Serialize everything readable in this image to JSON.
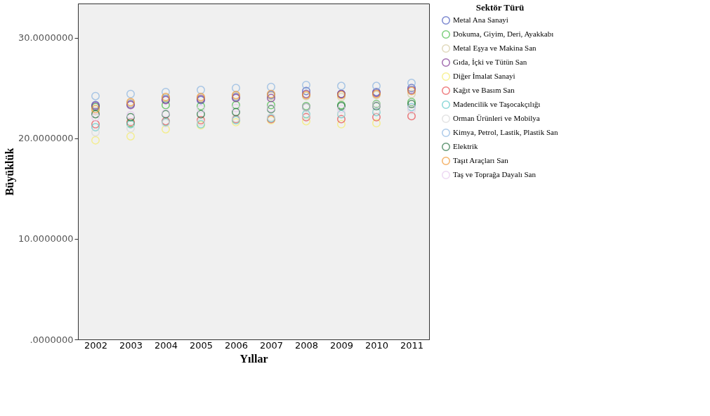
{
  "chart_data": {
    "type": "scatter",
    "xlabel": "Yıllar",
    "ylabel": "Büyüklük",
    "legend_title": "Sektör Türü",
    "legend": "top right",
    "grid": false,
    "marker": "circle",
    "categories": [
      "2002",
      "2003",
      "2004",
      "2005",
      "2006",
      "2007",
      "2008",
      "2009",
      "2010",
      "2011"
    ],
    "ylim": [
      0,
      33.4
    ],
    "yticks": [
      {
        "value": 0,
        "label": ".0000000"
      },
      {
        "value": 10,
        "label": "10.0000000"
      },
      {
        "value": 20,
        "label": "20.0000000"
      },
      {
        "value": 30,
        "label": "30.0000000"
      }
    ],
    "series": [
      {
        "name": "Metal Ana Sanayi",
        "color": "#4455bb",
        "values": [
          23.3,
          23.4,
          23.9,
          23.8,
          24.1,
          24.3,
          24.7,
          24.4,
          24.6,
          25.0
        ]
      },
      {
        "name": "Dokuma, Giyim, Deri, Ayakkabı",
        "color": "#44bb44",
        "values": [
          23.1,
          21.5,
          23.3,
          23.2,
          23.3,
          23.3,
          23.2,
          23.3,
          23.4,
          23.6
        ]
      },
      {
        "name": "Metal Eşya ve Makina San",
        "color": "#d4c9a0",
        "values": [
          22.7,
          23.5,
          24.0,
          24.0,
          24.2,
          24.2,
          24.2,
          24.1,
          24.3,
          24.4
        ]
      },
      {
        "name": "Gıda, İçki ve Tütün San",
        "color": "#7b2f8f",
        "values": [
          23.2,
          23.3,
          23.8,
          23.9,
          24.0,
          24.0,
          24.4,
          24.4,
          24.5,
          24.8
        ]
      },
      {
        "name": "Diğer İmalat Sanayi",
        "color": "#f5ec6a",
        "values": [
          19.8,
          20.2,
          20.9,
          21.3,
          21.6,
          21.8,
          21.7,
          21.4,
          21.5,
          null
        ]
      },
      {
        "name": "Kağıt ve Basım San",
        "color": "#e8474a",
        "values": [
          21.4,
          21.6,
          21.7,
          21.8,
          21.9,
          21.9,
          22.1,
          21.9,
          22.1,
          22.2
        ]
      },
      {
        "name": "Madencilik ve Taşocakçılığı",
        "color": "#5cc8c8",
        "values": [
          21.1,
          21.4,
          21.6,
          21.4,
          21.8,
          22.0,
          22.4,
          22.4,
          22.6,
          23.1
        ]
      },
      {
        "name": "Orman Ürünleri ve Mobilya",
        "color": "#d8d8d8",
        "values": [
          20.6,
          21.0,
          21.5,
          21.6,
          22.0,
          22.1,
          22.2,
          22.5,
          22.8,
          22.8
        ]
      },
      {
        "name": "Kimya, Petrol, Lastik, Plastik San",
        "color": "#8ab4e0",
        "values": [
          24.2,
          24.4,
          24.6,
          24.8,
          25.0,
          25.1,
          25.3,
          25.2,
          25.2,
          25.5
        ]
      },
      {
        "name": "Elektrik",
        "color": "#1f6b3a",
        "values": [
          22.4,
          22.1,
          22.4,
          22.4,
          22.6,
          22.9,
          23.1,
          23.2,
          23.2,
          23.4
        ]
      },
      {
        "name": "Taşıt Araçları San",
        "color": "#f0922a",
        "values": [
          22.9,
          23.6,
          24.1,
          24.1,
          24.3,
          24.4,
          24.3,
          24.3,
          24.4,
          24.7
        ]
      },
      {
        "name": "Taş ve Toprağa Dayalı San",
        "color": "#e6c8ee",
        "values": [
          22.1,
          22.3,
          22.5,
          22.9,
          23.0,
          23.0,
          23.1,
          22.9,
          23.3,
          23.0
        ]
      }
    ]
  }
}
